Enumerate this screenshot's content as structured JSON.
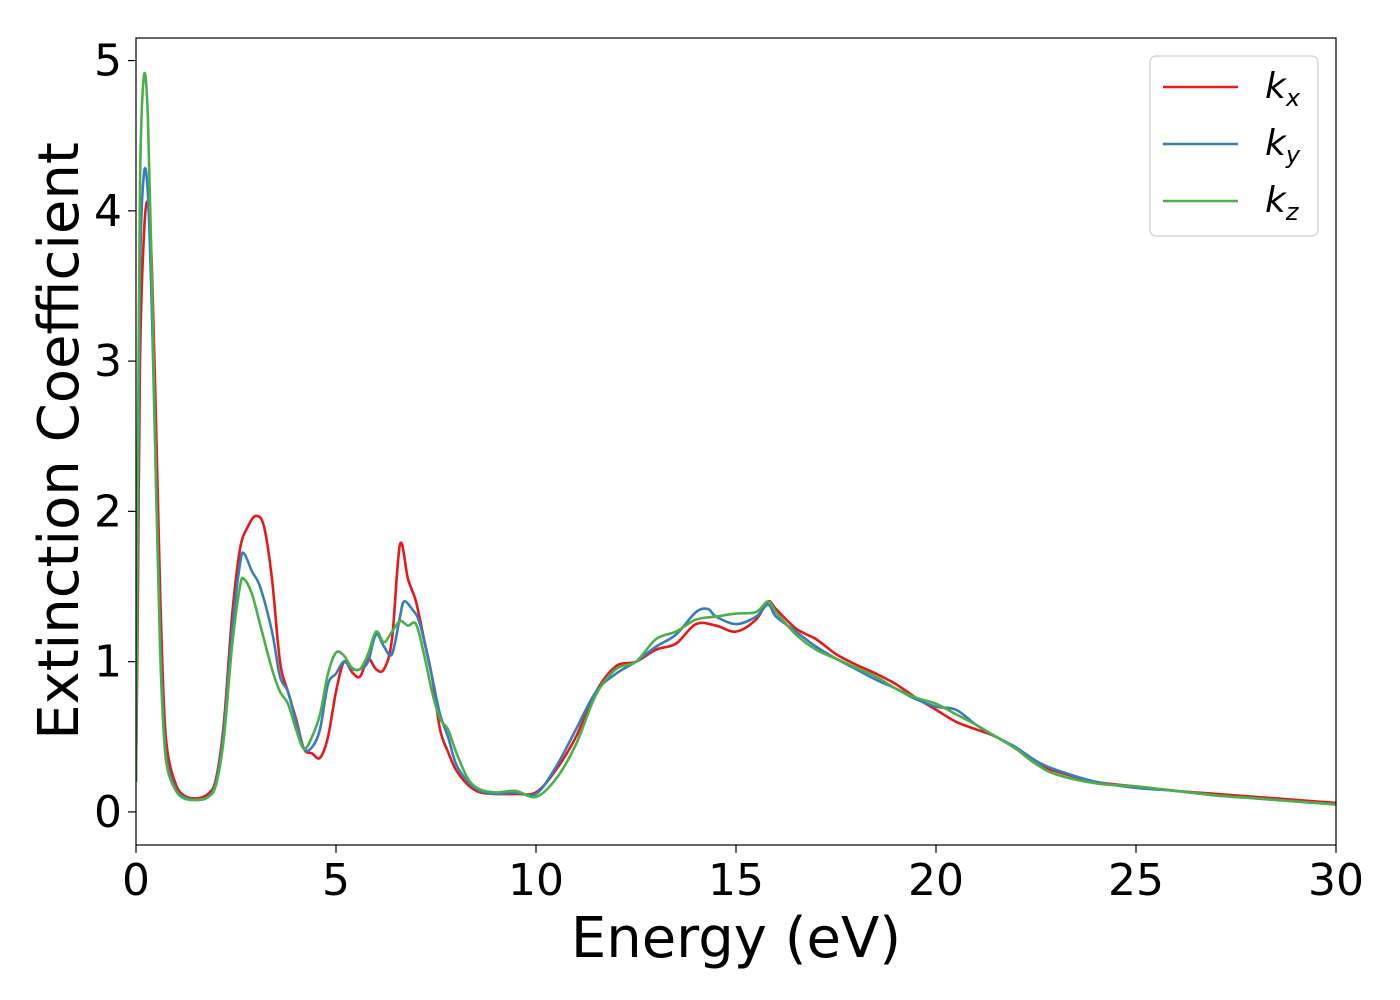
{
  "chart_data": {
    "type": "line",
    "title": "",
    "xlabel": "Energy (eV)",
    "ylabel": "Extinction Coefficient",
    "xlim": [
      0,
      30
    ],
    "ylim": [
      -0.22,
      5.15
    ],
    "x_ticks": [
      "0",
      "5",
      "10",
      "15",
      "20",
      "25",
      "30"
    ],
    "y_ticks": [
      "0",
      "1",
      "2",
      "3",
      "4",
      "5"
    ],
    "grid": false,
    "legend_position": "top-right",
    "series": [
      {
        "name": "k",
        "subscript": "x",
        "color": "#e41a1c",
        "points": [
          [
            0,
            0.2
          ],
          [
            0.05,
            1.5
          ],
          [
            0.1,
            3.0
          ],
          [
            0.2,
            3.85
          ],
          [
            0.3,
            4.05
          ],
          [
            0.4,
            3.6
          ],
          [
            0.5,
            2.6
          ],
          [
            0.6,
            1.5
          ],
          [
            0.7,
            0.7
          ],
          [
            0.8,
            0.38
          ],
          [
            1.0,
            0.18
          ],
          [
            1.2,
            0.11
          ],
          [
            1.5,
            0.09
          ],
          [
            1.8,
            0.12
          ],
          [
            2.0,
            0.22
          ],
          [
            2.2,
            0.6
          ],
          [
            2.4,
            1.3
          ],
          [
            2.6,
            1.75
          ],
          [
            2.8,
            1.9
          ],
          [
            3.0,
            1.97
          ],
          [
            3.2,
            1.9
          ],
          [
            3.4,
            1.55
          ],
          [
            3.6,
            1.0
          ],
          [
            3.8,
            0.8
          ],
          [
            4.0,
            0.62
          ],
          [
            4.2,
            0.42
          ],
          [
            4.4,
            0.39
          ],
          [
            4.6,
            0.36
          ],
          [
            4.8,
            0.5
          ],
          [
            5.0,
            0.8
          ],
          [
            5.2,
            1.0
          ],
          [
            5.4,
            0.93
          ],
          [
            5.6,
            0.9
          ],
          [
            5.8,
            1.02
          ],
          [
            6.0,
            0.95
          ],
          [
            6.2,
            0.95
          ],
          [
            6.4,
            1.15
          ],
          [
            6.6,
            1.78
          ],
          [
            6.8,
            1.55
          ],
          [
            7.0,
            1.4
          ],
          [
            7.2,
            1.15
          ],
          [
            7.4,
            0.9
          ],
          [
            7.6,
            0.55
          ],
          [
            7.8,
            0.4
          ],
          [
            8.0,
            0.28
          ],
          [
            8.3,
            0.18
          ],
          [
            8.6,
            0.13
          ],
          [
            9.0,
            0.12
          ],
          [
            9.5,
            0.12
          ],
          [
            10.0,
            0.13
          ],
          [
            10.5,
            0.28
          ],
          [
            11.0,
            0.5
          ],
          [
            11.5,
            0.8
          ],
          [
            12.0,
            0.97
          ],
          [
            12.5,
            1.0
          ],
          [
            13.0,
            1.08
          ],
          [
            13.5,
            1.12
          ],
          [
            14.0,
            1.25
          ],
          [
            14.5,
            1.24
          ],
          [
            15.0,
            1.2
          ],
          [
            15.5,
            1.28
          ],
          [
            15.8,
            1.4
          ],
          [
            16.0,
            1.35
          ],
          [
            16.5,
            1.22
          ],
          [
            17.0,
            1.15
          ],
          [
            17.5,
            1.05
          ],
          [
            18.0,
            0.98
          ],
          [
            18.5,
            0.92
          ],
          [
            19.0,
            0.85
          ],
          [
            19.5,
            0.76
          ],
          [
            20.0,
            0.68
          ],
          [
            20.5,
            0.6
          ],
          [
            21.0,
            0.55
          ],
          [
            21.5,
            0.5
          ],
          [
            22.0,
            0.42
          ],
          [
            22.5,
            0.32
          ],
          [
            23.0,
            0.27
          ],
          [
            24.0,
            0.2
          ],
          [
            25.0,
            0.17
          ],
          [
            26.0,
            0.14
          ],
          [
            27.0,
            0.12
          ],
          [
            28.0,
            0.1
          ],
          [
            29.0,
            0.08
          ],
          [
            30.0,
            0.06
          ]
        ]
      },
      {
        "name": "k",
        "subscript": "y",
        "color": "#377eb8",
        "points": [
          [
            0,
            0.2
          ],
          [
            0.05,
            2.0
          ],
          [
            0.1,
            3.6
          ],
          [
            0.2,
            4.25
          ],
          [
            0.3,
            4.1
          ],
          [
            0.4,
            3.3
          ],
          [
            0.5,
            2.2
          ],
          [
            0.6,
            1.2
          ],
          [
            0.7,
            0.55
          ],
          [
            0.8,
            0.3
          ],
          [
            1.0,
            0.15
          ],
          [
            1.2,
            0.1
          ],
          [
            1.5,
            0.08
          ],
          [
            1.8,
            0.1
          ],
          [
            2.0,
            0.2
          ],
          [
            2.2,
            0.55
          ],
          [
            2.4,
            1.2
          ],
          [
            2.6,
            1.65
          ],
          [
            2.7,
            1.72
          ],
          [
            2.9,
            1.6
          ],
          [
            3.1,
            1.5
          ],
          [
            3.4,
            1.2
          ],
          [
            3.6,
            0.9
          ],
          [
            3.8,
            0.8
          ],
          [
            4.0,
            0.6
          ],
          [
            4.2,
            0.42
          ],
          [
            4.4,
            0.43
          ],
          [
            4.6,
            0.55
          ],
          [
            4.8,
            0.85
          ],
          [
            5.0,
            0.92
          ],
          [
            5.2,
            1.0
          ],
          [
            5.4,
            0.95
          ],
          [
            5.6,
            0.95
          ],
          [
            5.8,
            1.0
          ],
          [
            6.0,
            1.18
          ],
          [
            6.2,
            1.1
          ],
          [
            6.4,
            1.05
          ],
          [
            6.6,
            1.3
          ],
          [
            6.7,
            1.4
          ],
          [
            6.9,
            1.35
          ],
          [
            7.1,
            1.25
          ],
          [
            7.4,
            0.9
          ],
          [
            7.6,
            0.65
          ],
          [
            7.8,
            0.5
          ],
          [
            8.0,
            0.32
          ],
          [
            8.3,
            0.2
          ],
          [
            8.6,
            0.14
          ],
          [
            9.0,
            0.12
          ],
          [
            9.5,
            0.13
          ],
          [
            10.0,
            0.12
          ],
          [
            10.5,
            0.3
          ],
          [
            11.0,
            0.55
          ],
          [
            11.5,
            0.8
          ],
          [
            12.0,
            0.92
          ],
          [
            12.5,
            1.0
          ],
          [
            13.0,
            1.1
          ],
          [
            13.5,
            1.18
          ],
          [
            14.0,
            1.33
          ],
          [
            14.3,
            1.35
          ],
          [
            14.5,
            1.3
          ],
          [
            15.0,
            1.25
          ],
          [
            15.5,
            1.3
          ],
          [
            15.8,
            1.38
          ],
          [
            16.0,
            1.3
          ],
          [
            16.5,
            1.2
          ],
          [
            17.0,
            1.1
          ],
          [
            17.5,
            1.02
          ],
          [
            18.0,
            0.95
          ],
          [
            18.5,
            0.88
          ],
          [
            19.0,
            0.82
          ],
          [
            19.5,
            0.75
          ],
          [
            20.0,
            0.7
          ],
          [
            20.5,
            0.68
          ],
          [
            21.0,
            0.58
          ],
          [
            21.5,
            0.5
          ],
          [
            22.0,
            0.43
          ],
          [
            22.5,
            0.34
          ],
          [
            23.0,
            0.28
          ],
          [
            24.0,
            0.2
          ],
          [
            25.0,
            0.16
          ],
          [
            26.0,
            0.14
          ],
          [
            27.0,
            0.11
          ],
          [
            28.0,
            0.09
          ],
          [
            29.0,
            0.07
          ],
          [
            30.0,
            0.05
          ]
        ]
      },
      {
        "name": "k",
        "subscript": "z",
        "color": "#4daf4a",
        "points": [
          [
            0,
            0.2
          ],
          [
            0.05,
            2.5
          ],
          [
            0.1,
            4.2
          ],
          [
            0.2,
            4.9
          ],
          [
            0.3,
            4.6
          ],
          [
            0.4,
            3.5
          ],
          [
            0.5,
            2.2
          ],
          [
            0.6,
            1.1
          ],
          [
            0.7,
            0.5
          ],
          [
            0.8,
            0.27
          ],
          [
            1.0,
            0.14
          ],
          [
            1.2,
            0.09
          ],
          [
            1.5,
            0.08
          ],
          [
            1.8,
            0.1
          ],
          [
            2.0,
            0.18
          ],
          [
            2.2,
            0.5
          ],
          [
            2.4,
            1.1
          ],
          [
            2.6,
            1.5
          ],
          [
            2.7,
            1.55
          ],
          [
            2.9,
            1.45
          ],
          [
            3.1,
            1.25
          ],
          [
            3.4,
            0.95
          ],
          [
            3.6,
            0.8
          ],
          [
            3.8,
            0.72
          ],
          [
            4.0,
            0.55
          ],
          [
            4.2,
            0.42
          ],
          [
            4.4,
            0.5
          ],
          [
            4.6,
            0.65
          ],
          [
            4.8,
            0.92
          ],
          [
            5.0,
            1.06
          ],
          [
            5.2,
            1.04
          ],
          [
            5.4,
            0.96
          ],
          [
            5.6,
            0.95
          ],
          [
            5.8,
            1.05
          ],
          [
            6.0,
            1.2
          ],
          [
            6.2,
            1.13
          ],
          [
            6.4,
            1.2
          ],
          [
            6.6,
            1.27
          ],
          [
            6.8,
            1.24
          ],
          [
            7.0,
            1.25
          ],
          [
            7.2,
            1.05
          ],
          [
            7.4,
            0.8
          ],
          [
            7.6,
            0.62
          ],
          [
            7.8,
            0.55
          ],
          [
            8.0,
            0.4
          ],
          [
            8.3,
            0.22
          ],
          [
            8.6,
            0.15
          ],
          [
            9.0,
            0.13
          ],
          [
            9.5,
            0.14
          ],
          [
            10.0,
            0.1
          ],
          [
            10.5,
            0.22
          ],
          [
            11.0,
            0.45
          ],
          [
            11.5,
            0.78
          ],
          [
            12.0,
            0.95
          ],
          [
            12.5,
            1.0
          ],
          [
            13.0,
            1.15
          ],
          [
            13.5,
            1.2
          ],
          [
            14.0,
            1.28
          ],
          [
            14.5,
            1.3
          ],
          [
            15.0,
            1.32
          ],
          [
            15.5,
            1.33
          ],
          [
            15.8,
            1.4
          ],
          [
            16.0,
            1.33
          ],
          [
            16.5,
            1.18
          ],
          [
            17.0,
            1.08
          ],
          [
            17.5,
            1.02
          ],
          [
            18.0,
            0.96
          ],
          [
            18.5,
            0.9
          ],
          [
            19.0,
            0.82
          ],
          [
            19.5,
            0.76
          ],
          [
            20.0,
            0.72
          ],
          [
            20.5,
            0.65
          ],
          [
            21.0,
            0.58
          ],
          [
            21.5,
            0.5
          ],
          [
            22.0,
            0.42
          ],
          [
            22.5,
            0.32
          ],
          [
            23.0,
            0.25
          ],
          [
            24.0,
            0.19
          ],
          [
            25.0,
            0.17
          ],
          [
            26.0,
            0.14
          ],
          [
            27.0,
            0.11
          ],
          [
            28.0,
            0.09
          ],
          [
            29.0,
            0.07
          ],
          [
            30.0,
            0.05
          ]
        ]
      }
    ]
  }
}
